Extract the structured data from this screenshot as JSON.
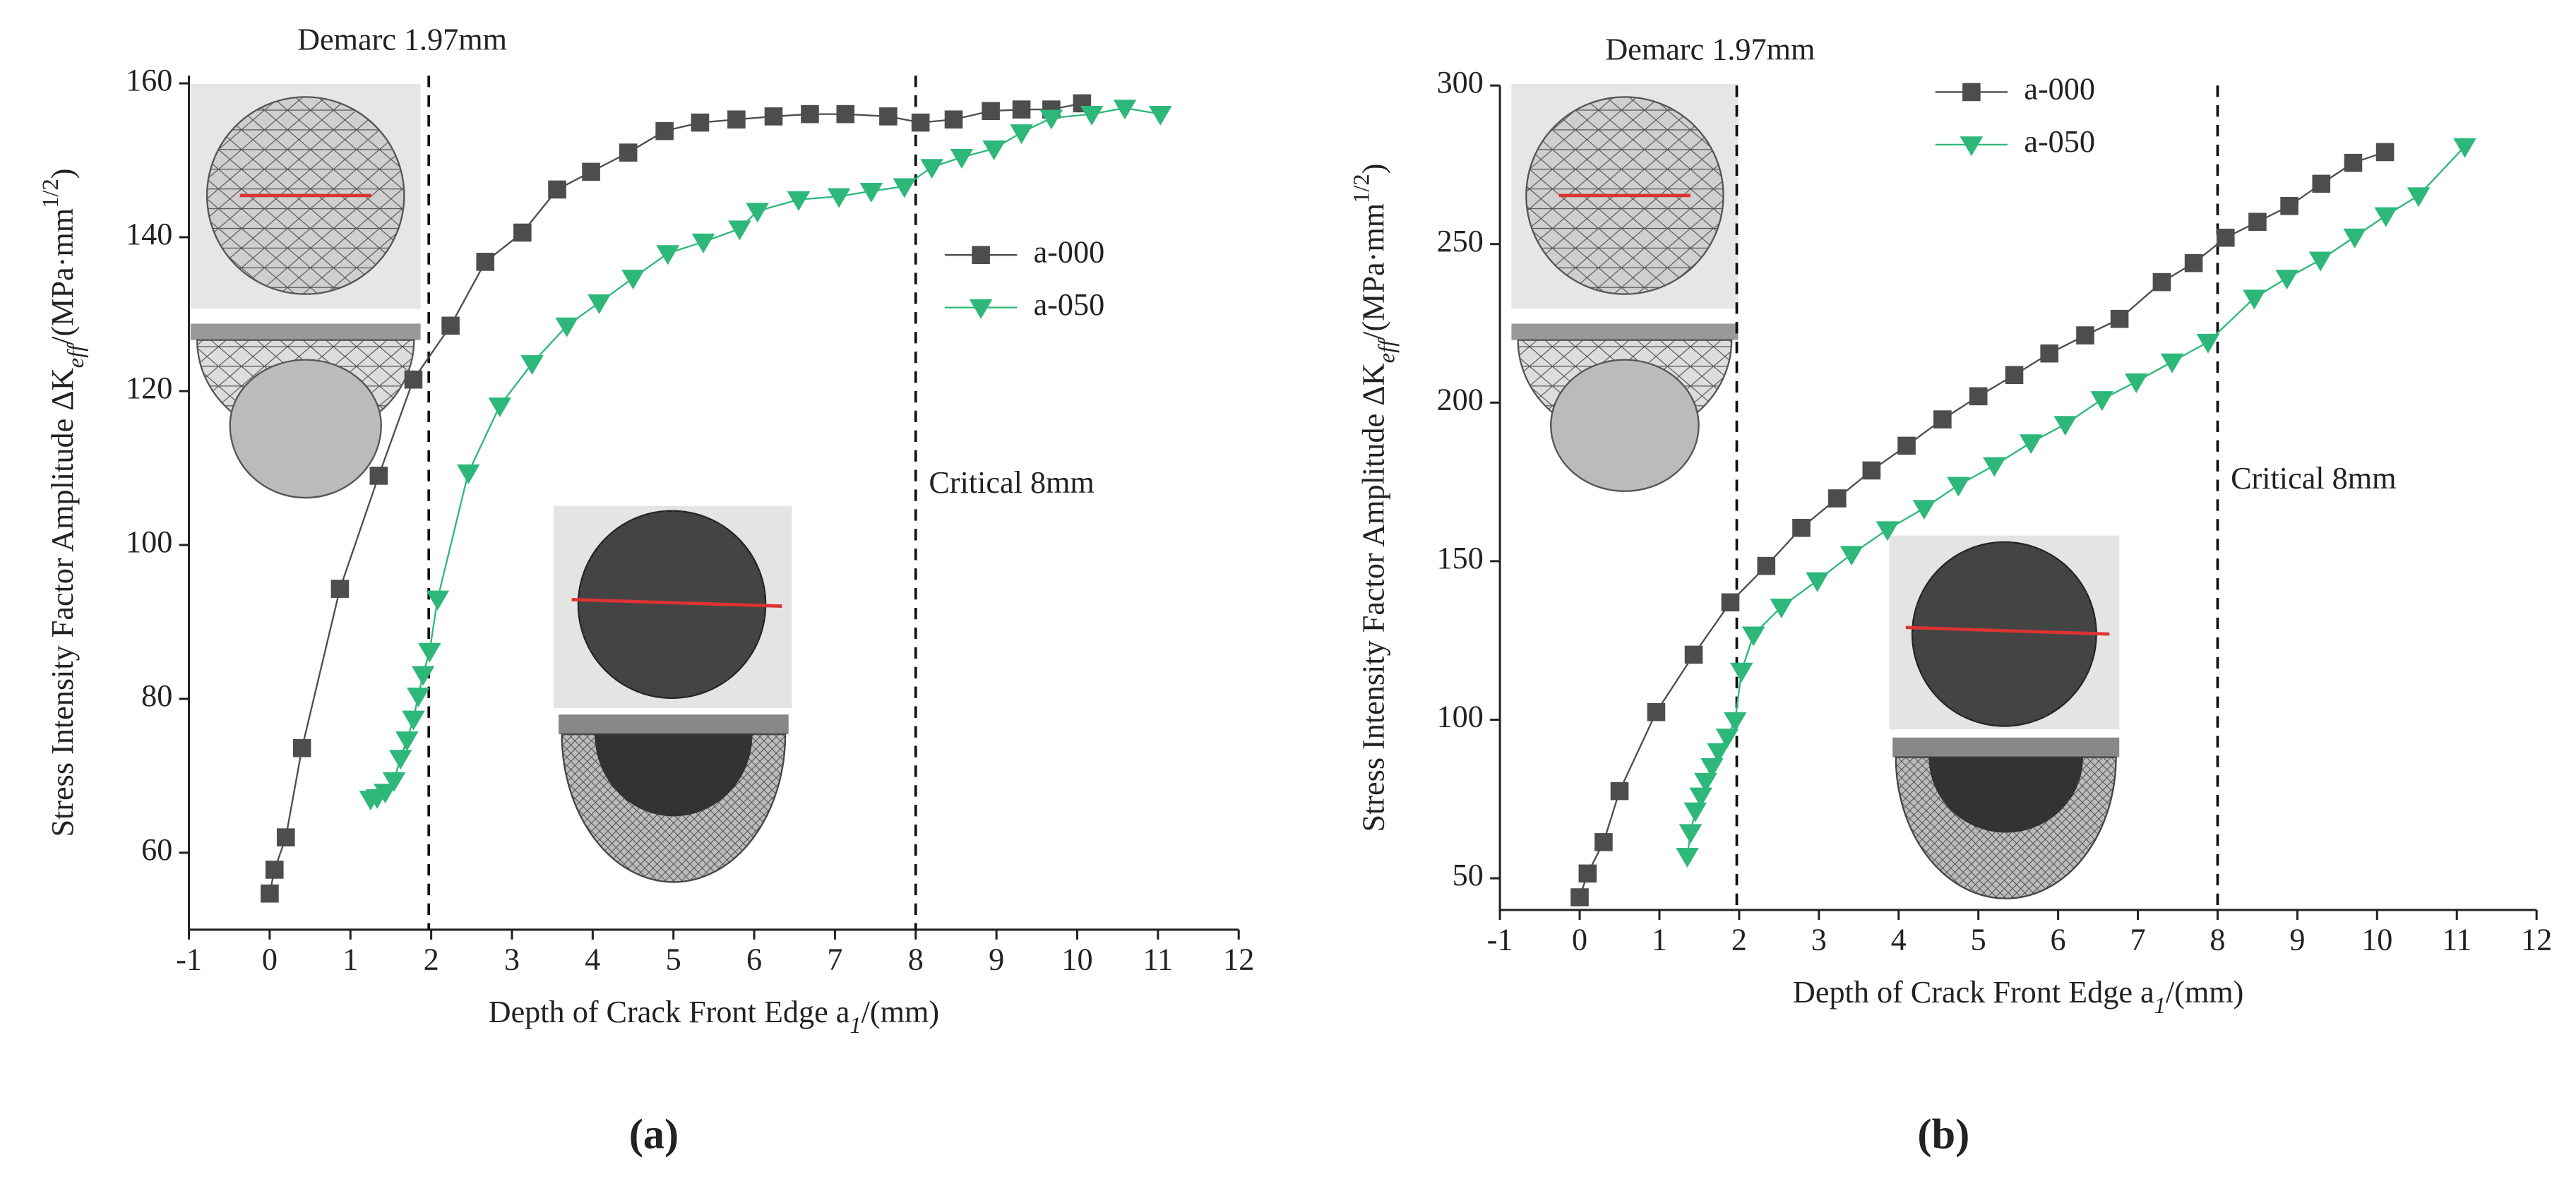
{
  "chart_data": [
    {
      "type": "line",
      "caption": "(a)",
      "xlabel": [
        "Depth of Crack Front Edge a",
        "1",
        "/(mm)"
      ],
      "ylabel": [
        "Stress Intensity Factor Amplitude ΔK",
        "eff",
        "/(MPa·mm",
        "1/2",
        ")"
      ],
      "xlim": [
        -1,
        12
      ],
      "xticks": [
        -1,
        0,
        1,
        2,
        3,
        4,
        5,
        6,
        7,
        8,
        9,
        10,
        11,
        12
      ],
      "ylim": [
        50,
        161
      ],
      "yticks": [
        60,
        80,
        100,
        120,
        140,
        160
      ],
      "legend": "center right",
      "annotations": [
        {
          "text": "Demarc 1.97mm",
          "x": 1.97
        },
        {
          "text": "Critical 8mm",
          "x": 8
        }
      ],
      "series": [
        {
          "name": "a-000",
          "color": "#4d4d4d",
          "marker": "square",
          "x": [
            0,
            0.06,
            0.2,
            0.4,
            0.87,
            1.35,
            1.78,
            2.24,
            2.67,
            3.13,
            3.56,
            3.98,
            4.44,
            4.89,
            5.33,
            5.78,
            6.24,
            6.69,
            7.13,
            7.66,
            8.06,
            8.47,
            8.93,
            9.31,
            9.68,
            10.06
          ],
          "values": [
            54.7,
            57.8,
            62,
            73.6,
            94.3,
            109,
            121.5,
            128.5,
            136.8,
            140.6,
            146.2,
            148.5,
            151,
            153.8,
            154.9,
            155.3,
            155.7,
            156,
            156,
            155.7,
            154.9,
            155.3,
            156.4,
            156.6,
            156.6,
            157.4
          ]
        },
        {
          "name": "a-050",
          "color": "#2db87a",
          "marker": "triangle-down",
          "x": [
            1.25,
            1.33,
            1.43,
            1.54,
            1.62,
            1.7,
            1.78,
            1.84,
            1.9,
            1.98,
            2.08,
            2.46,
            2.85,
            3.25,
            3.68,
            4.08,
            4.5,
            4.93,
            5.37,
            5.82,
            6.04,
            6.55,
            7.05,
            7.45,
            7.86,
            8.2,
            8.57,
            8.97,
            9.31,
            9.68,
            10.18,
            10.59,
            11.03
          ],
          "values": [
            67,
            67.2,
            67.9,
            69.4,
            72.3,
            74.7,
            77.4,
            80.4,
            83.2,
            86.2,
            93,
            109.4,
            118.1,
            123.6,
            128.5,
            131.5,
            134.7,
            137.9,
            139.4,
            141.1,
            143.4,
            144.9,
            145.3,
            146,
            146.6,
            149.1,
            150.4,
            151.5,
            153.6,
            155.5,
            156,
            156.8,
            156
          ]
        }
      ]
    },
    {
      "type": "line",
      "caption": "(b)",
      "xlabel": [
        "Depth of Crack Front Edge  a",
        "1",
        "/(mm)"
      ],
      "ylabel": [
        "Stress Intensity Factor Amplitude ΔK",
        "eff",
        "/(MPa·mm",
        "1/2",
        ")"
      ],
      "xlim": [
        -1,
        12
      ],
      "xticks": [
        -1,
        0,
        1,
        2,
        3,
        4,
        5,
        6,
        7,
        8,
        9,
        10,
        11,
        12
      ],
      "ylim": [
        40,
        300
      ],
      "yticks": [
        50,
        100,
        150,
        200,
        250,
        300
      ],
      "legend": "upper center",
      "annotations": [
        {
          "text": "Demarc 1.97mm",
          "x": 1.97
        },
        {
          "text": "Critical 8mm",
          "x": 8
        }
      ],
      "series": [
        {
          "name": "a-000",
          "color": "#4d4d4d",
          "marker": "square",
          "x": [
            0,
            0.1,
            0.3,
            0.5,
            0.96,
            1.43,
            1.89,
            2.34,
            2.78,
            3.23,
            3.66,
            4.1,
            4.55,
            5.0,
            5.45,
            5.89,
            6.34,
            6.77,
            7.3,
            7.7,
            8.1,
            8.5,
            8.9,
            9.3,
            9.7,
            10.1
          ],
          "values": [
            44,
            51.5,
            61.4,
            77.5,
            102.4,
            120.5,
            137,
            148.5,
            160.5,
            169.8,
            178.6,
            186.4,
            194.7,
            202,
            208.7,
            215.5,
            221.2,
            226.4,
            238,
            244,
            252,
            257,
            262,
            269,
            275.6,
            279
          ]
        },
        {
          "name": "a-050",
          "color": "#2db87a",
          "marker": "triangle-down",
          "x": [
            1.35,
            1.39,
            1.45,
            1.52,
            1.58,
            1.66,
            1.74,
            1.85,
            1.95,
            2.03,
            2.18,
            2.53,
            2.98,
            3.41,
            3.86,
            4.32,
            4.75,
            5.2,
            5.66,
            6.09,
            6.55,
            6.98,
            7.43,
            7.88,
            8.46,
            8.87,
            9.29,
            9.72,
            10.11,
            10.52,
            11.1
          ],
          "values": [
            57,
            64.5,
            71.3,
            76,
            80.6,
            85.3,
            90,
            94.6,
            99.8,
            115.4,
            126.8,
            135.6,
            143.9,
            152.2,
            160,
            166.7,
            174,
            180.2,
            187.4,
            193.2,
            201,
            206.6,
            212.9,
            219.1,
            233,
            239.3,
            245,
            252.3,
            259,
            265.3,
            280.8
          ]
        }
      ]
    }
  ]
}
